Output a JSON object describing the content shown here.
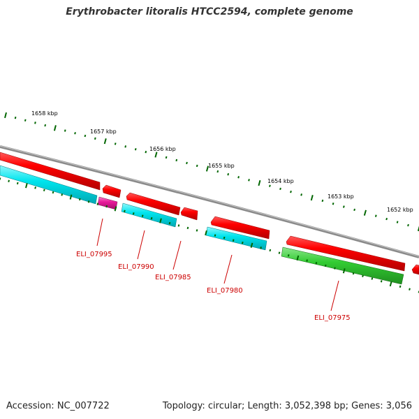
{
  "title": "Erythrobacter litoralis HTCC2594, complete genome",
  "footer": {
    "accession": "Accession: NC_007722",
    "summary": "Topology: circular; Length: 3,052,398 bp; Genes: 3,056"
  },
  "colors": {
    "backbone": "#8a8a8a",
    "forward_cds": "#ff0000",
    "reverse_cds_cyan": "#00e5ee",
    "reverse_cds_magenta": "#e8199a",
    "reverse_cds_green": "#33cc33",
    "tick": "#006600",
    "locus_tag": "#cc0000"
  },
  "kbp_labels": [
    "1658 kbp",
    "1657 kbp",
    "1656 kbp",
    "1655 kbp",
    "1654 kbp",
    "1653 kbp",
    "1652 kbp"
  ],
  "locus_tags": [
    "ELI_07995",
    "ELI_07990",
    "ELI_07985",
    "ELI_07980",
    "ELI_07975"
  ]
}
